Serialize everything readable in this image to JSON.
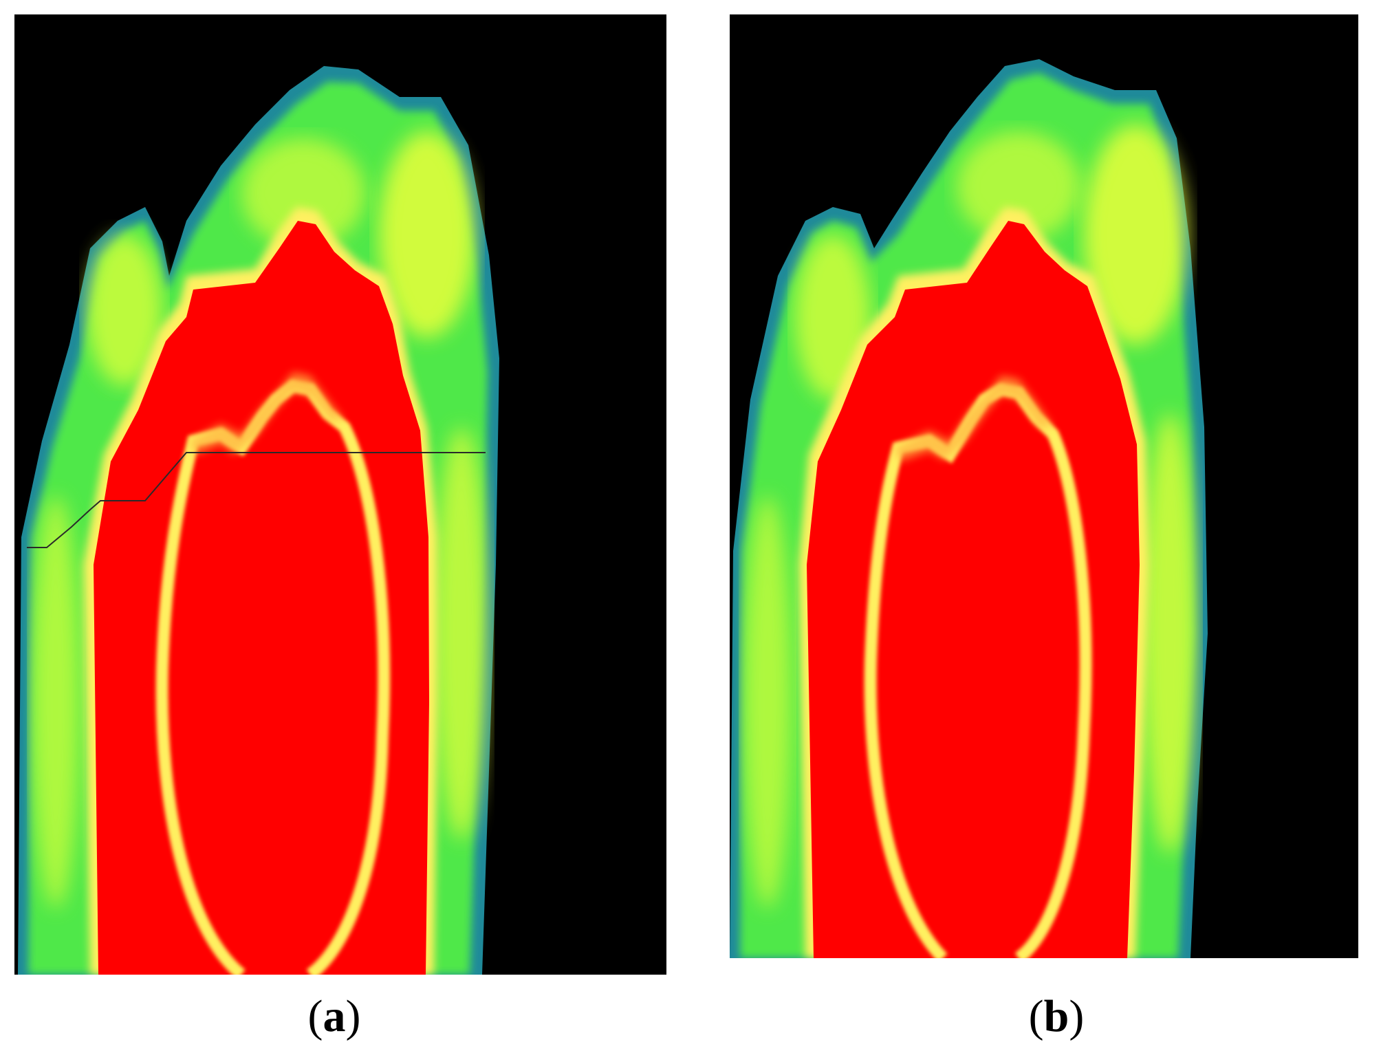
{
  "figure": {
    "panels": [
      {
        "id": "a",
        "label": "a"
      },
      {
        "id": "b",
        "label": "b"
      }
    ],
    "colors": {
      "background": "#000000",
      "outer_edge": "#1f8a9a",
      "mid_green": "#4fe84a",
      "yellow": "#e8ff3a",
      "core": "#ff0000",
      "ring": "#fff060",
      "seam_line": "#2a2a2a"
    }
  }
}
